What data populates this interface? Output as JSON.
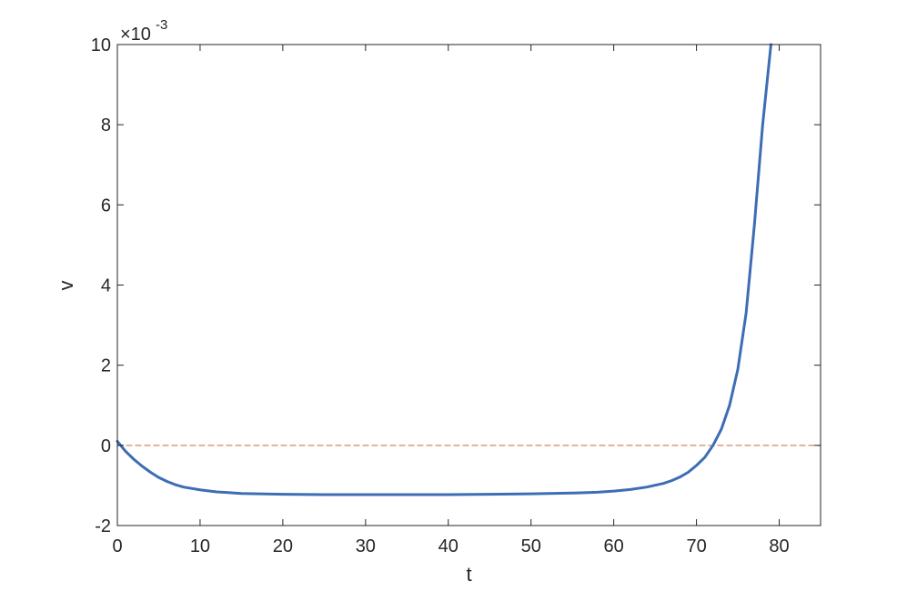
{
  "chart_data": {
    "type": "line",
    "title": "",
    "xlabel": "t",
    "ylabel": "v",
    "y_exponent_label": "×10",
    "y_exponent_power": "-3",
    "xlim": [
      0,
      85
    ],
    "ylim": [
      -2,
      10
    ],
    "x_ticks": [
      0,
      10,
      20,
      30,
      40,
      50,
      60,
      70,
      80
    ],
    "y_ticks": [
      -2,
      0,
      2,
      4,
      6,
      8,
      10
    ],
    "x_tick_labels": [
      "0",
      "10",
      "20",
      "30",
      "40",
      "50",
      "60",
      "70",
      "80"
    ],
    "y_tick_labels": [
      "-2",
      "0",
      "2",
      "4",
      "6",
      "8",
      "10"
    ],
    "grid": false,
    "legend": "none",
    "series": [
      {
        "style": "solid",
        "color": "#3d6db5",
        "x": [
          0,
          1,
          2,
          3,
          4,
          5,
          6,
          7,
          8,
          10,
          12,
          15,
          20,
          25,
          30,
          35,
          40,
          45,
          50,
          55,
          58,
          60,
          62,
          64,
          66,
          67,
          68,
          69,
          70,
          71,
          72,
          73,
          74,
          75,
          76,
          77,
          78,
          79
        ],
        "y": [
          0.1,
          -0.15,
          -0.35,
          -0.52,
          -0.67,
          -0.8,
          -0.9,
          -0.98,
          -1.04,
          -1.11,
          -1.16,
          -1.2,
          -1.22,
          -1.23,
          -1.23,
          -1.23,
          -1.23,
          -1.22,
          -1.21,
          -1.19,
          -1.17,
          -1.14,
          -1.1,
          -1.04,
          -0.95,
          -0.88,
          -0.79,
          -0.67,
          -0.5,
          -0.3,
          0.0,
          0.4,
          1.0,
          1.9,
          3.3,
          5.5,
          8.0,
          10.0
        ]
      },
      {
        "style": "dashed",
        "color": "#d9946a",
        "x": [
          0,
          85
        ],
        "y": [
          0,
          0
        ]
      }
    ]
  }
}
